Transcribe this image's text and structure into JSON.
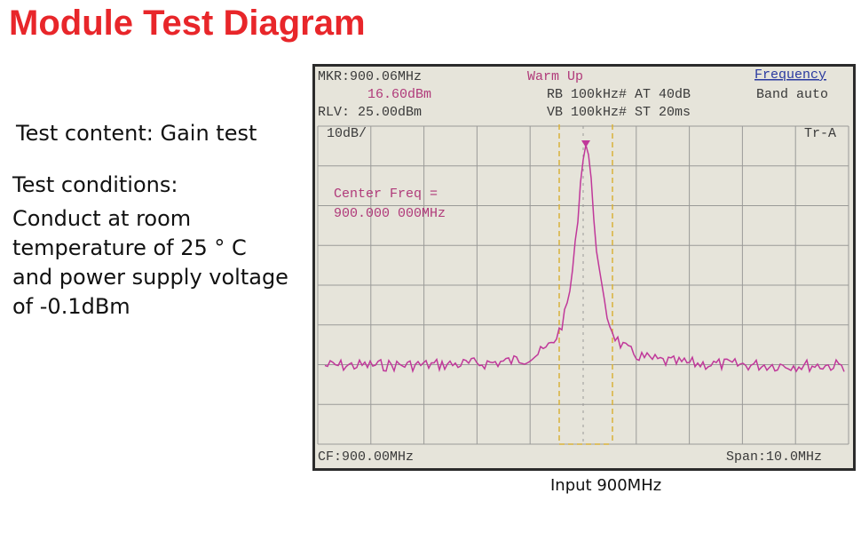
{
  "header": {
    "title": "Module Test Diagram"
  },
  "left": {
    "content": "Test content: Gain test",
    "conditions_label": "Test conditions:",
    "conditions_lines": [
      "Conduct at room",
      "temperature of 25 ° C",
      "and power supply voltage",
      "of -0.1dBm"
    ]
  },
  "screen": {
    "marker": "MKR:900.06MHz",
    "marker_level": "16.60dBm",
    "ref_level": "RLV: 25.00dBm",
    "scale": "10dB/",
    "status": "Warm Up",
    "rb_line": "RB 100kHz# AT 40dB",
    "vb_line": "VB 100kHz# ST 20ms",
    "menu_title": "Frequency",
    "menu_item": "Band auto",
    "trace": "Tr-A",
    "center_label": "Center Freq =",
    "center_value": "900.000 000MHz",
    "cf": "CF:900.00MHz",
    "span": "Span:10.0MHz"
  },
  "caption": "Input 900MHz"
}
